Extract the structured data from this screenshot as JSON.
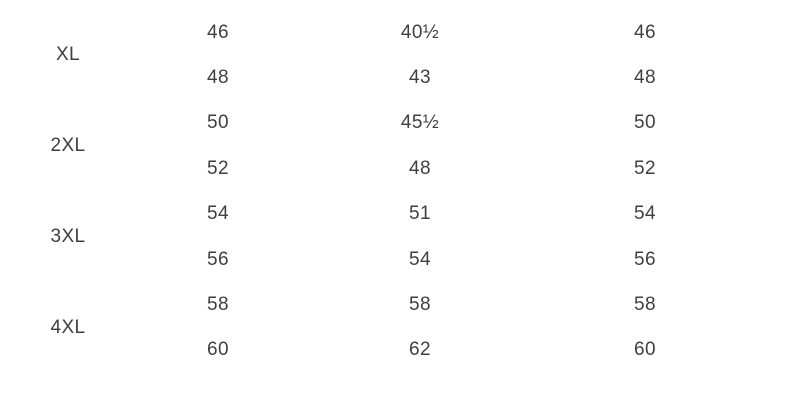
{
  "colors": {
    "background": "#ffffff",
    "text": "#3f3f3f"
  },
  "table": {
    "groups": [
      {
        "size": "XL",
        "rows": [
          [
            "46",
            "40½",
            "46"
          ],
          [
            "48",
            "43",
            "48"
          ]
        ]
      },
      {
        "size": "2XL",
        "rows": [
          [
            "50",
            "45½",
            "50"
          ],
          [
            "52",
            "48",
            "52"
          ]
        ]
      },
      {
        "size": "3XL",
        "rows": [
          [
            "54",
            "51",
            "54"
          ],
          [
            "56",
            "54",
            "56"
          ]
        ]
      },
      {
        "size": "4XL",
        "rows": [
          [
            "58",
            "58",
            "58"
          ],
          [
            "60",
            "62",
            "60"
          ]
        ]
      }
    ]
  },
  "chart_data": {
    "type": "table",
    "row_groups": [
      {
        "label": "XL",
        "rows": [
          [
            46,
            40.5,
            46
          ],
          [
            48,
            43,
            48
          ]
        ]
      },
      {
        "label": "2XL",
        "rows": [
          [
            50,
            45.5,
            50
          ],
          [
            52,
            48,
            52
          ]
        ]
      },
      {
        "label": "3XL",
        "rows": [
          [
            54,
            51,
            54
          ],
          [
            56,
            54,
            56
          ]
        ]
      },
      {
        "label": "4XL",
        "rows": [
          [
            58,
            58,
            58
          ],
          [
            60,
            62,
            60
          ]
        ]
      }
    ],
    "layout": "each size label spans two measurement rows; three numeric columns; no visible headers or gridlines"
  }
}
